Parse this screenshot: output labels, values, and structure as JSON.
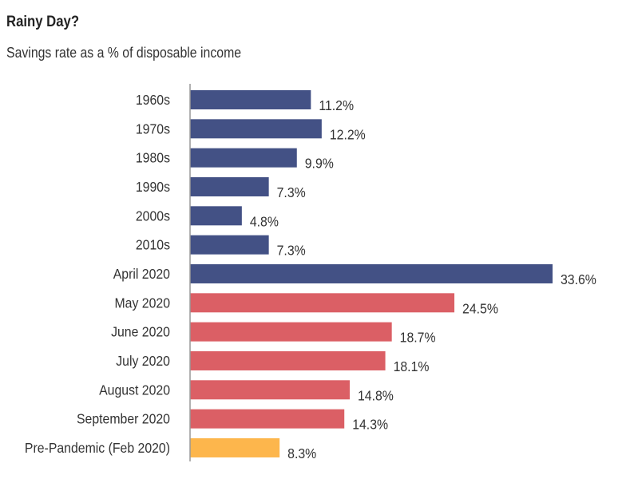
{
  "title": "Rainy Day?",
  "subtitle": "Savings rate as a % of disposable income",
  "colors": {
    "historical": "#435185",
    "pandemic": "#db5f65",
    "pre_pandemic": "#fdb64c",
    "axis": "#999999"
  },
  "chart_data": {
    "type": "bar",
    "orientation": "horizontal",
    "title": "Rainy Day?",
    "subtitle": "Savings rate as a % of disposable income",
    "categories": [
      "1960s",
      "1970s",
      "1980s",
      "1990s",
      "2000s",
      "2010s",
      "April 2020",
      "May 2020",
      "June 2020",
      "July 2020",
      "August 2020",
      "September 2020",
      "Pre-Pandemic (Feb 2020)"
    ],
    "values": [
      11.2,
      12.2,
      9.9,
      7.3,
      4.8,
      7.3,
      33.6,
      24.5,
      18.7,
      18.1,
      14.8,
      14.3,
      8.3
    ],
    "value_labels": [
      "11.2%",
      "12.2%",
      "9.9%",
      "7.3%",
      "4.8%",
      "7.3%",
      "33.6%",
      "24.5%",
      "18.7%",
      "18.1%",
      "14.8%",
      "14.3%",
      "8.3%"
    ],
    "bar_colors": [
      "#435185",
      "#435185",
      "#435185",
      "#435185",
      "#435185",
      "#435185",
      "#435185",
      "#db5f65",
      "#db5f65",
      "#db5f65",
      "#db5f65",
      "#db5f65",
      "#fdb64c"
    ],
    "xlim": [
      0,
      33.6
    ],
    "grid": false,
    "legend": "none"
  }
}
